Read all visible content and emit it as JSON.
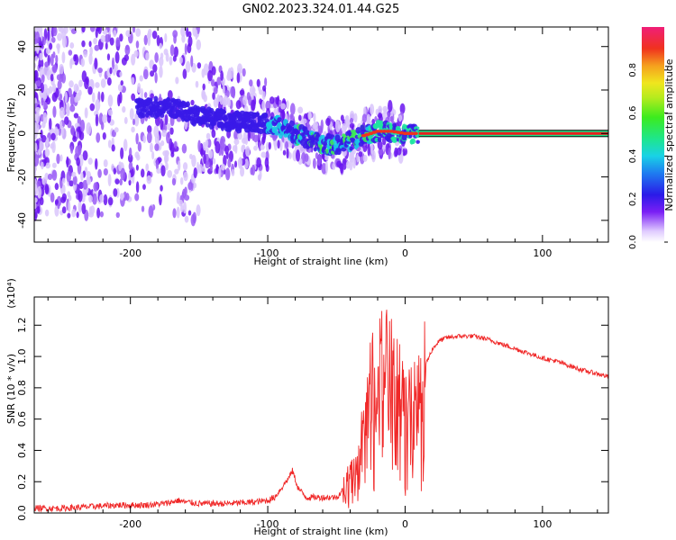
{
  "title": "GN02.2023.324.01.44.G25",
  "colors": {
    "signal_line": "#e8201e",
    "snr_line": "#f02828",
    "spectrogram_low": "#a080f0",
    "spectrogram_mid": "#4020e8"
  },
  "chart_data": [
    {
      "type": "heatmap",
      "name": "spectrogram",
      "title": "GN02.2023.324.01.44.G25",
      "xlabel": "Height of straight line (km)",
      "ylabel": "Frequency (Hz)",
      "xlim": [
        -270,
        148
      ],
      "ylim": [
        -50,
        49
      ],
      "x_ticks": [
        -200,
        -100,
        0,
        100
      ],
      "x_tick_labels": [
        "-200",
        "-100",
        "0",
        "100"
      ],
      "y_ticks": [
        -40,
        -20,
        0,
        20,
        40
      ],
      "y_tick_labels": [
        "-40",
        "-20",
        "0",
        "20",
        "40"
      ],
      "colorbar": {
        "label": "Normalized spectral amplitude",
        "range": [
          0.0,
          1.0
        ],
        "ticks": [
          0.0,
          0.2,
          0.4,
          0.6,
          0.8
        ],
        "tick_labels": [
          "0.0",
          "0.2",
          "0.4",
          "0.6",
          "0.8"
        ]
      },
      "ridge": {
        "x": [
          -190,
          -170,
          -150,
          -130,
          -110,
          -95,
          -80,
          -65,
          -50,
          -35,
          -20,
          -10,
          0,
          10,
          148
        ],
        "y": [
          12,
          12,
          8,
          6,
          5,
          4,
          0,
          -4,
          -6,
          -2,
          1,
          1,
          0,
          0,
          0
        ]
      },
      "steady_line": {
        "x": [
          10,
          148
        ],
        "y": 0,
        "value": 1.0
      }
    },
    {
      "type": "line",
      "name": "snr",
      "xlabel": "Height of straight line (km)",
      "ylabel": "SNR (10 * v/v)",
      "y_scale_label": "(x10⁴)",
      "xlim": [
        -270,
        148
      ],
      "ylim": [
        0.0,
        1.38
      ],
      "x_ticks": [
        -200,
        -100,
        0,
        100
      ],
      "x_tick_labels": [
        "-200",
        "-100",
        "0",
        "100"
      ],
      "y_ticks": [
        0.0,
        0.2,
        0.4,
        0.6,
        0.8,
        1.0,
        1.2
      ],
      "y_tick_labels": [
        "0.0",
        "0.2",
        "0.4",
        "0.6",
        "0.8",
        "1.0",
        "1.2"
      ],
      "series": [
        {
          "x": [
            -270,
            -250,
            -230,
            -210,
            -200,
            -190,
            -175,
            -165,
            -160,
            -150,
            -130,
            -110,
            -100,
            -95,
            -90,
            -85,
            -82,
            -78,
            -72,
            -60,
            -50,
            -45,
            -40,
            -35,
            -30,
            -25,
            -20,
            -15,
            -10,
            -5,
            0,
            5,
            10,
            15,
            20,
            25,
            30,
            40,
            50,
            60,
            70,
            80,
            90,
            100,
            110,
            120,
            130,
            140,
            148
          ],
          "y": [
            0.03,
            0.03,
            0.04,
            0.05,
            0.05,
            0.05,
            0.06,
            0.08,
            0.07,
            0.06,
            0.06,
            0.07,
            0.08,
            0.1,
            0.16,
            0.22,
            0.27,
            0.16,
            0.1,
            0.1,
            0.1,
            0.15,
            0.22,
            0.35,
            0.6,
            0.85,
            0.95,
            1.05,
            1.0,
            0.9,
            0.65,
            0.7,
            0.75,
            0.95,
            1.05,
            1.1,
            1.12,
            1.13,
            1.13,
            1.11,
            1.08,
            1.05,
            1.02,
            0.99,
            0.97,
            0.94,
            0.91,
            0.89,
            0.87
          ]
        }
      ]
    }
  ]
}
